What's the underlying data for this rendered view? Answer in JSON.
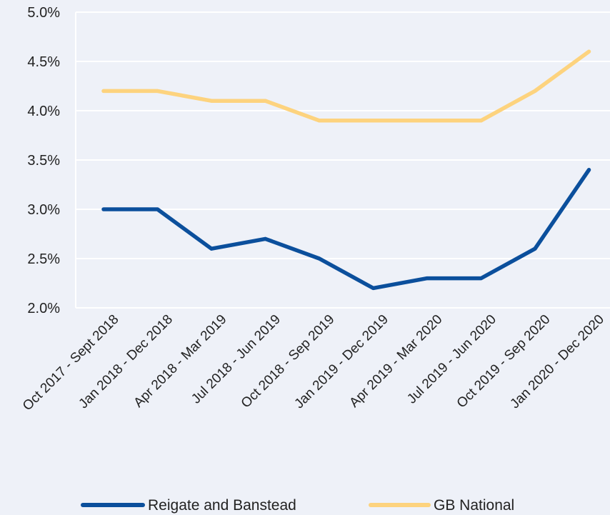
{
  "chart_data": {
    "type": "line",
    "categories": [
      "Oct 2017 - Sept 2018",
      "Jan 2018 - Dec 2018",
      "Apr 2018 - Mar 2019",
      "Jul 2018 - Jun 2019",
      "Oct 2018 - Sep 2019",
      "Jan 2019 - Dec 2019",
      "Apr 2019 - Mar 2020",
      "Jul 2019 - Jun 2020",
      "Oct 2019 - Sep 2020",
      "Jan 2020 - Dec 2020"
    ],
    "series": [
      {
        "name": "Reigate and Banstead",
        "color": "#0b4f9c",
        "values": [
          3.0,
          3.0,
          2.6,
          2.7,
          2.5,
          2.2,
          2.3,
          2.3,
          2.6,
          3.4
        ]
      },
      {
        "name": "GB National",
        "color": "#fdd37e",
        "values": [
          4.2,
          4.2,
          4.1,
          4.1,
          3.9,
          3.9,
          3.9,
          3.9,
          4.2,
          4.6
        ]
      }
    ],
    "y_ticks": [
      "2.0%",
      "2.5%",
      "3.0%",
      "3.5%",
      "4.0%",
      "4.5%",
      "5.0%"
    ],
    "ylim": [
      2.0,
      5.0
    ],
    "grid": true,
    "legend": "bottom"
  }
}
